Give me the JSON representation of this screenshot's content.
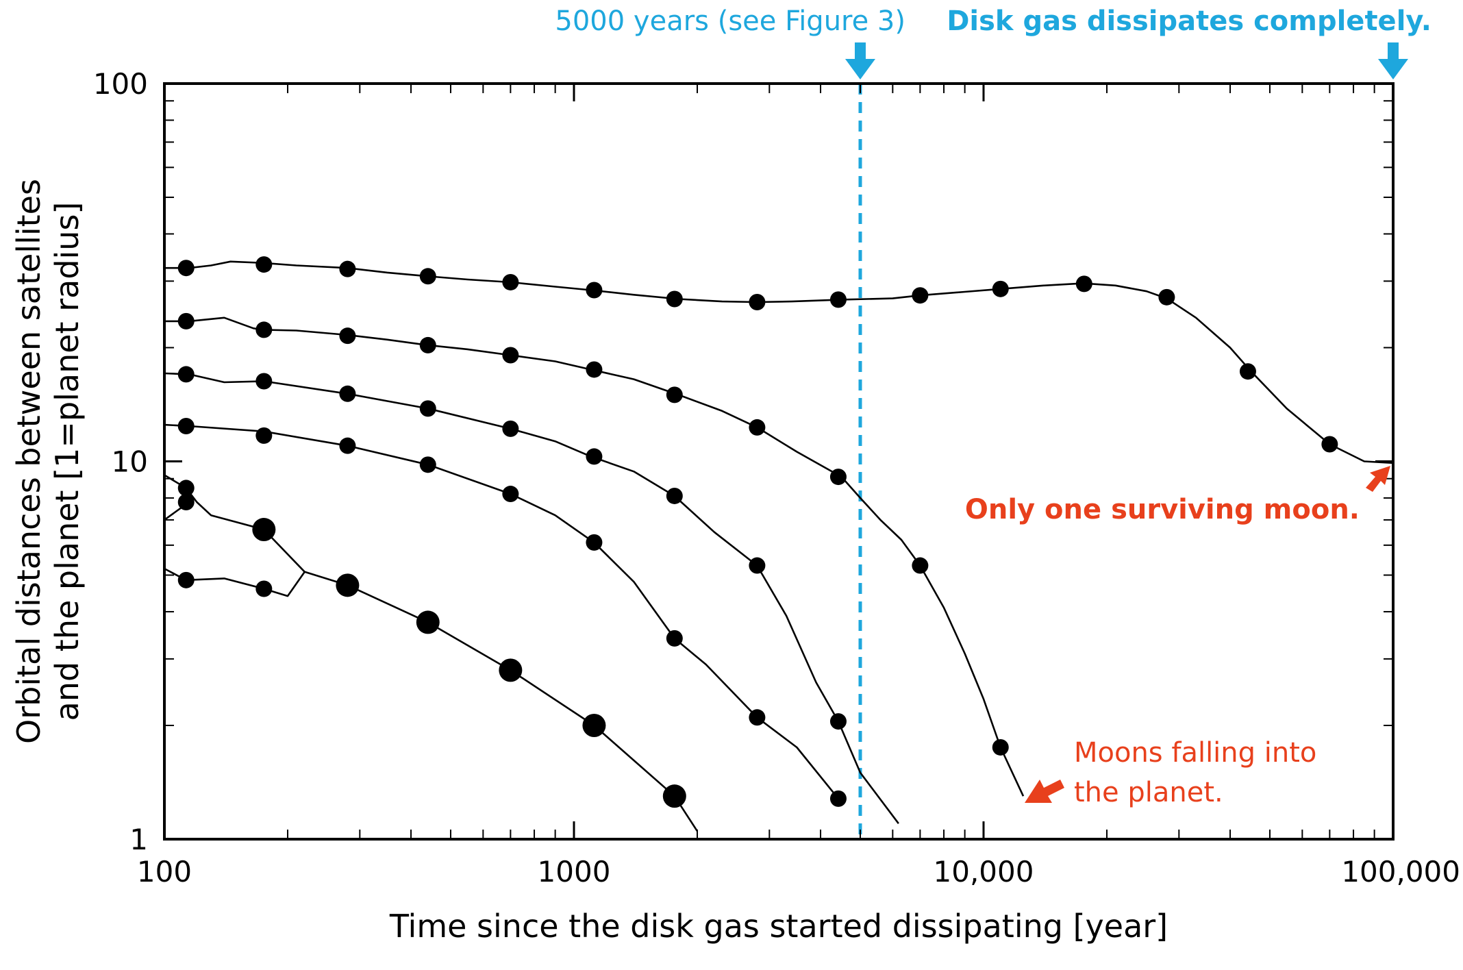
{
  "chart_data": {
    "type": "line",
    "xlabel": "Time since the disk gas started dissipating [year]",
    "ylabel": [
      "Orbital distances between satellites",
      "and the planet [1=planet radius]"
    ],
    "x_scale": "log",
    "y_scale": "log",
    "xlim": [
      100,
      100000
    ],
    "ylim": [
      1,
      100
    ],
    "x_ticks": [
      {
        "value": 100,
        "label": "100"
      },
      {
        "value": 1000,
        "label": "1000"
      },
      {
        "value": 10000,
        "label": "10,000"
      },
      {
        "value": 100000,
        "label": "100,000"
      }
    ],
    "y_ticks": [
      {
        "value": 1,
        "label": "1"
      },
      {
        "value": 10,
        "label": "10"
      },
      {
        "value": 100,
        "label": "100"
      }
    ],
    "grid": false,
    "series": [
      {
        "line": [
          [
            100,
            32.5
          ],
          [
            115,
            32.5
          ],
          [
            130,
            33
          ],
          [
            145,
            33.8
          ],
          [
            175,
            33.5
          ],
          [
            210,
            33
          ],
          [
            280,
            32.5
          ],
          [
            350,
            31.6
          ],
          [
            440,
            30.9
          ],
          [
            550,
            30.3
          ],
          [
            700,
            29.8
          ],
          [
            900,
            29
          ],
          [
            1100,
            28.4
          ],
          [
            1400,
            27.6
          ],
          [
            1800,
            26.9
          ],
          [
            2300,
            26.5
          ],
          [
            2800,
            26.4
          ],
          [
            3400,
            26.5
          ],
          [
            4500,
            26.8
          ],
          [
            6000,
            27
          ],
          [
            7000,
            27.5
          ],
          [
            9000,
            28.1
          ],
          [
            11000,
            28.6
          ],
          [
            14000,
            29.2
          ],
          [
            17500,
            29.6
          ],
          [
            21000,
            29.2
          ],
          [
            25000,
            28.2
          ],
          [
            28000,
            27
          ],
          [
            33000,
            24
          ],
          [
            40000,
            20
          ],
          [
            45000,
            17.3
          ],
          [
            55000,
            13.8
          ],
          [
            70000,
            11.1
          ],
          [
            85000,
            10
          ],
          [
            100000,
            9.9
          ]
        ],
        "markers": [
          [
            113,
            32.5
          ],
          [
            175,
            33.2
          ],
          [
            280,
            32.3
          ],
          [
            440,
            30.9
          ],
          [
            700,
            29.8
          ],
          [
            1120,
            28.4
          ],
          [
            1760,
            26.9
          ],
          [
            2800,
            26.4
          ],
          [
            4420,
            26.8
          ],
          [
            7000,
            27.5
          ],
          [
            11000,
            28.6
          ],
          [
            17600,
            29.5
          ],
          [
            28000,
            27.2
          ],
          [
            44200,
            17.3
          ],
          [
            70000,
            11.1
          ]
        ]
      },
      {
        "line": [
          [
            100,
            23.5
          ],
          [
            115,
            23.5
          ],
          [
            140,
            24
          ],
          [
            165,
            22.5
          ],
          [
            175,
            22.3
          ],
          [
            210,
            22.2
          ],
          [
            280,
            21.6
          ],
          [
            350,
            21
          ],
          [
            440,
            20.3
          ],
          [
            550,
            19.8
          ],
          [
            700,
            19.1
          ],
          [
            900,
            18.4
          ],
          [
            1100,
            17.5
          ],
          [
            1400,
            16.5
          ],
          [
            1800,
            15
          ],
          [
            2300,
            13.6
          ],
          [
            2800,
            12.3
          ],
          [
            3500,
            10.6
          ],
          [
            4500,
            9.1
          ],
          [
            5000,
            8
          ],
          [
            5600,
            7
          ],
          [
            6300,
            6.2
          ],
          [
            7000,
            5.3
          ],
          [
            8000,
            4.1
          ],
          [
            9000,
            3.1
          ],
          [
            10000,
            2.35
          ],
          [
            11000,
            1.75
          ],
          [
            12500,
            1.3
          ]
        ],
        "markers": [
          [
            113,
            23.5
          ],
          [
            175,
            22.3
          ],
          [
            280,
            21.5
          ],
          [
            440,
            20.3
          ],
          [
            700,
            19.1
          ],
          [
            1120,
            17.5
          ],
          [
            1760,
            15
          ],
          [
            2800,
            12.3
          ],
          [
            4420,
            9.1
          ],
          [
            7000,
            5.3
          ],
          [
            11000,
            1.75
          ]
        ]
      },
      {
        "line": [
          [
            100,
            17.1
          ],
          [
            115,
            17
          ],
          [
            140,
            16.2
          ],
          [
            175,
            16.3
          ],
          [
            280,
            15.1
          ],
          [
            440,
            13.8
          ],
          [
            700,
            12.2
          ],
          [
            900,
            11.3
          ],
          [
            1100,
            10.3
          ],
          [
            1400,
            9.4
          ],
          [
            1760,
            8.1
          ],
          [
            2200,
            6.5
          ],
          [
            2800,
            5.3
          ],
          [
            3300,
            3.9
          ],
          [
            3900,
            2.6
          ],
          [
            4420,
            2.05
          ],
          [
            5000,
            1.5
          ],
          [
            6200,
            1.1
          ]
        ],
        "markers": [
          [
            113,
            17
          ],
          [
            175,
            16.3
          ],
          [
            280,
            15.1
          ],
          [
            440,
            13.8
          ],
          [
            700,
            12.2
          ],
          [
            1120,
            10.3
          ],
          [
            1760,
            8.1
          ],
          [
            2800,
            5.3
          ],
          [
            4420,
            2.05
          ]
        ]
      },
      {
        "line": [
          [
            100,
            12.5
          ],
          [
            115,
            12.4
          ],
          [
            175,
            12
          ],
          [
            280,
            11
          ],
          [
            440,
            9.8
          ],
          [
            700,
            8.2
          ],
          [
            900,
            7.2
          ],
          [
            1120,
            6.1
          ],
          [
            1400,
            4.8
          ],
          [
            1760,
            3.4
          ],
          [
            2100,
            2.9
          ],
          [
            2800,
            2.1
          ],
          [
            3500,
            1.75
          ],
          [
            4420,
            1.28
          ]
        ],
        "markers": [
          [
            113,
            12.4
          ],
          [
            175,
            11.7
          ],
          [
            280,
            11
          ],
          [
            440,
            9.8
          ],
          [
            700,
            8.2
          ],
          [
            1120,
            6.1
          ],
          [
            1760,
            3.4
          ],
          [
            2800,
            2.1
          ],
          [
            4420,
            1.28
          ]
        ]
      },
      {
        "line": [
          [
            100,
            9.2
          ],
          [
            113,
            8.5
          ],
          [
            120,
            7.8
          ],
          [
            130,
            7.2
          ],
          [
            175,
            6.6
          ],
          [
            220,
            5.1
          ],
          [
            280,
            4.7
          ],
          [
            440,
            3.75
          ],
          [
            700,
            2.8
          ],
          [
            1120,
            2
          ],
          [
            1760,
            1.3
          ],
          [
            2000,
            1.05
          ]
        ],
        "markers": [
          [
            113,
            8.5
          ],
          [
            113,
            7.8
          ],
          [
            175,
            6.6
          ],
          [
            280,
            4.7
          ],
          [
            440,
            3.75
          ],
          [
            700,
            2.8
          ],
          [
            1120,
            2
          ],
          [
            1760,
            1.3
          ]
        ],
        "large_markers": [
          false,
          false,
          true,
          true,
          true,
          true,
          true,
          true
        ]
      },
      {
        "line": [
          [
            100,
            7.0
          ],
          [
            113,
            7.7
          ]
        ]
      },
      {
        "line": [
          [
            100,
            5.2
          ],
          [
            113,
            4.85
          ],
          [
            140,
            4.9
          ],
          [
            175,
            4.6
          ],
          [
            200,
            4.4
          ],
          [
            220,
            5.1
          ]
        ],
        "markers": [
          [
            113,
            4.85
          ],
          [
            175,
            4.6
          ]
        ]
      }
    ],
    "reference_line": {
      "x": 5000,
      "style": "dashed",
      "color": "#1ea7dd"
    },
    "annotations": [
      {
        "text": "5000 years (see Figure 3)",
        "color": "#1ea7dd",
        "bold": false,
        "arrow": "down",
        "x": 5000
      },
      {
        "text": "Disk gas dissipates completely.",
        "color": "#1ea7dd",
        "bold": true,
        "arrow": "down",
        "x": 100000
      },
      {
        "text": "Only one surviving moon.",
        "color": "#e8401c",
        "bold": true
      },
      {
        "text": [
          "Moons falling into",
          "the planet."
        ],
        "color": "#e8401c",
        "bold": false
      }
    ],
    "colors": {
      "line": "#000000",
      "marker": "#000000",
      "cyan": "#1ea7dd",
      "red": "#e8401c"
    }
  }
}
